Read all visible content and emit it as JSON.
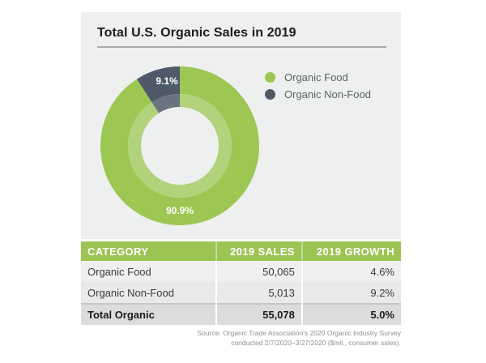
{
  "title": "Total U.S. Organic Sales in 2019",
  "colors": {
    "food": "#9dc653",
    "food_inner": "#b2d27b",
    "nonfood": "#4f5a69",
    "nonfood_inner": "#6b7582",
    "header": "#9bc453"
  },
  "chart_data": {
    "type": "pie",
    "title": "Total U.S. Organic Sales in 2019",
    "donut": true,
    "start_angle": "12 o'clock, counter-clockwise for Organic Non-Food",
    "slices": [
      {
        "label": "Organic Food",
        "value": 90.9,
        "display": "90.9%",
        "color": "#9dc653"
      },
      {
        "label": "Organic Non-Food",
        "value": 9.1,
        "display": "9.1%",
        "color": "#4f5a69"
      }
    ],
    "legend": {
      "placement": "top-right",
      "entries": [
        "Organic Food",
        "Organic Non-Food"
      ]
    }
  },
  "table": {
    "headers": [
      "CATEGORY",
      "2019 SALES",
      "2019 GROWTH"
    ],
    "rows": [
      {
        "category": "Organic Food",
        "sales": "50,065",
        "growth": "4.6%"
      },
      {
        "category": "Organic Non-Food",
        "sales": "5,013",
        "growth": "9.2%"
      }
    ],
    "total": {
      "category": "Total Organic",
      "sales": "55,078",
      "growth": "5.0%"
    }
  },
  "source": {
    "line1": "Source: Organic Trade Association's 2020 Organic Industry Survey",
    "line2": "conducted 2/7/2020–3/27/2020 ($mil., consumer sales)."
  }
}
